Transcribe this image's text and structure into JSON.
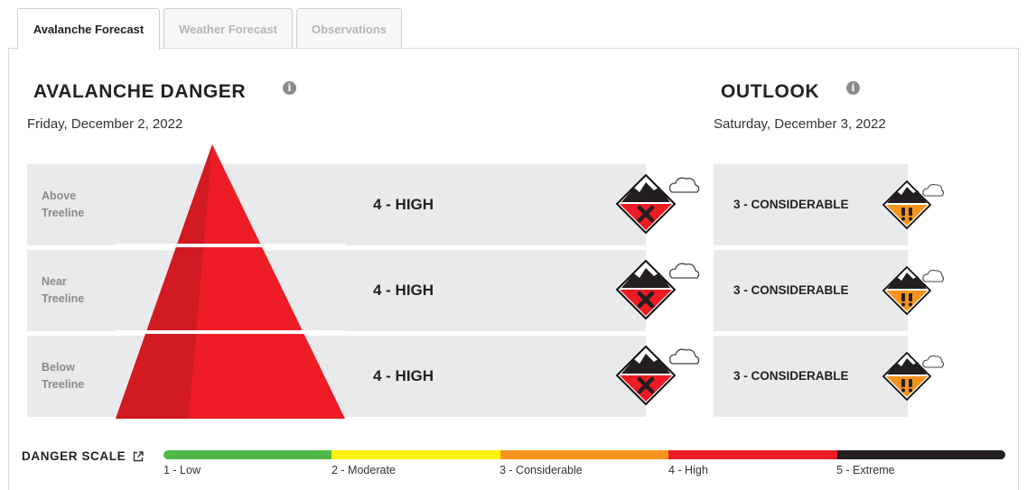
{
  "tabs": [
    {
      "label": "Avalanche Forecast",
      "active": true
    },
    {
      "label": "Weather Forecast",
      "active": false
    },
    {
      "label": "Observations",
      "active": false
    }
  ],
  "danger": {
    "title": "AVALANCHE DANGER",
    "date": "Friday, December 2, 2022",
    "rows": [
      {
        "elevation_line1": "Above",
        "elevation_line2": "Treeline",
        "rating": "4 - HIGH",
        "icon": "high-danger-icon"
      },
      {
        "elevation_line1": "Near",
        "elevation_line2": "Treeline",
        "rating": "4 - HIGH",
        "icon": "high-danger-icon"
      },
      {
        "elevation_line1": "Below",
        "elevation_line2": "Treeline",
        "rating": "4 - HIGH",
        "icon": "high-danger-icon"
      }
    ],
    "pyramid_color": "#ee1c25"
  },
  "outlook": {
    "title": "OUTLOOK",
    "date": "Saturday, December 3, 2022",
    "rows": [
      {
        "rating": "3 - CONSIDERABLE",
        "icon": "considerable-danger-icon"
      },
      {
        "rating": "3 - CONSIDERABLE",
        "icon": "considerable-danger-icon"
      },
      {
        "rating": "3 - CONSIDERABLE",
        "icon": "considerable-danger-icon"
      }
    ]
  },
  "scale": {
    "title": "DANGER SCALE",
    "levels": [
      {
        "label": "1 - Low",
        "color": "#50b848"
      },
      {
        "label": "2 - Moderate",
        "color": "#fff200"
      },
      {
        "label": "3 - Considerable",
        "color": "#f7941e"
      },
      {
        "label": "4 - High",
        "color": "#ed1c24"
      },
      {
        "label": "5 - Extreme",
        "color": "#231f20"
      }
    ]
  },
  "colors": {
    "high": "#ed1c24",
    "considerable": "#f7941e",
    "row_bg": "#e9eaec"
  }
}
